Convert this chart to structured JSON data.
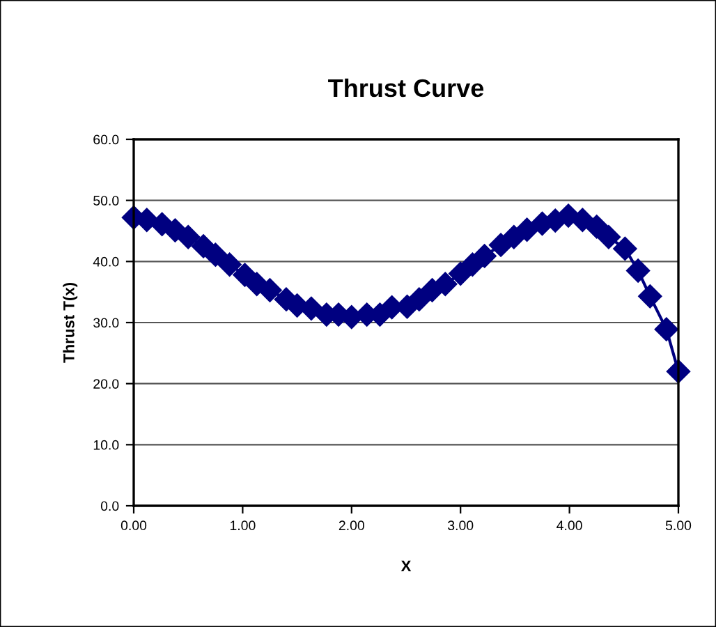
{
  "chart_data": {
    "type": "line",
    "title": "Thrust Curve",
    "xlabel": "X",
    "ylabel": "Thrust T(x)",
    "x": [
      0.0,
      0.12,
      0.26,
      0.38,
      0.5,
      0.64,
      0.75,
      0.88,
      1.02,
      1.13,
      1.25,
      1.4,
      1.5,
      1.63,
      1.77,
      1.88,
      2.0,
      2.14,
      2.26,
      2.37,
      2.51,
      2.62,
      2.74,
      2.86,
      3.0,
      3.11,
      3.22,
      3.37,
      3.49,
      3.61,
      3.75,
      3.87,
      3.99,
      4.12,
      4.25,
      4.36,
      4.51,
      4.63,
      4.74,
      4.89,
      5.0
    ],
    "series": [
      {
        "color": "#000080",
        "values": [
          47.2,
          46.8,
          46.1,
          45.1,
          44.0,
          42.5,
          41.1,
          39.5,
          37.8,
          36.3,
          35.3,
          33.8,
          32.8,
          32.3,
          31.3,
          31.3,
          30.9,
          31.3,
          31.3,
          32.5,
          32.6,
          33.8,
          35.3,
          36.3,
          38.0,
          39.5,
          40.9,
          42.7,
          44.0,
          45.2,
          46.2,
          46.7,
          47.5,
          46.8,
          45.7,
          44.0,
          42.1,
          38.5,
          34.3,
          28.9,
          22.0
        ]
      }
    ],
    "xlim": [
      0,
      5
    ],
    "xticks": [
      {
        "value": 0,
        "label": "0.00"
      },
      {
        "value": 1,
        "label": "1.00"
      },
      {
        "value": 2,
        "label": "2.00"
      },
      {
        "value": 3,
        "label": "3.00"
      },
      {
        "value": 4,
        "label": "4.00"
      },
      {
        "value": 5,
        "label": "5.00"
      }
    ],
    "ylim": [
      0,
      60
    ],
    "yticks": [
      {
        "value": 0,
        "label": "0.0"
      },
      {
        "value": 10,
        "label": "10.0"
      },
      {
        "value": 20,
        "label": "20.0"
      },
      {
        "value": 30,
        "label": "30.0"
      },
      {
        "value": 40,
        "label": "40.0"
      },
      {
        "value": 50,
        "label": "50.0"
      },
      {
        "value": 60,
        "label": "60.0"
      }
    ],
    "grid": "y",
    "legend": false,
    "marker": "diamond",
    "line_style": "solid"
  }
}
